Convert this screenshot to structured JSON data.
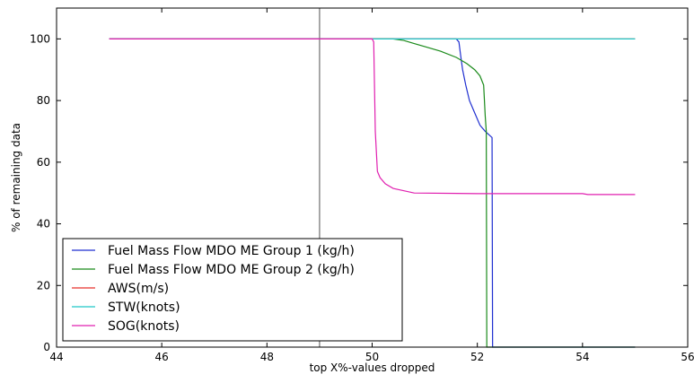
{
  "chart_data": {
    "type": "line",
    "title": "",
    "xlabel": "top X%-values dropped",
    "ylabel": "% of remaining data",
    "xlim": [
      44,
      56
    ],
    "ylim": [
      0,
      110
    ],
    "xticks": [
      44,
      46,
      48,
      50,
      52,
      54,
      56
    ],
    "yticks": [
      0,
      20,
      40,
      60,
      80,
      100
    ],
    "grid": false,
    "legend_position": "lower-left",
    "vertical_reference_line": {
      "x": 49,
      "color": "#8c8c8c"
    },
    "series": [
      {
        "name": "Fuel Mass Flow MDO ME Group 1 (kg/h)",
        "color": "#1f2fd0",
        "points": [
          [
            45,
            100
          ],
          [
            51.6,
            100
          ],
          [
            51.65,
            99
          ],
          [
            51.68,
            95
          ],
          [
            51.72,
            90
          ],
          [
            51.78,
            85
          ],
          [
            51.85,
            80
          ],
          [
            51.95,
            76
          ],
          [
            52.05,
            72
          ],
          [
            52.15,
            70
          ],
          [
            52.28,
            68
          ],
          [
            52.29,
            0
          ],
          [
            55,
            0
          ]
        ]
      },
      {
        "name": "Fuel Mass Flow MDO ME Group 2 (kg/h)",
        "color": "#1a8a1a",
        "points": [
          [
            45,
            100
          ],
          [
            50.4,
            100
          ],
          [
            50.6,
            99.5
          ],
          [
            50.8,
            98.5
          ],
          [
            51,
            97.5
          ],
          [
            51.3,
            96
          ],
          [
            51.6,
            94
          ],
          [
            51.8,
            92
          ],
          [
            51.95,
            90
          ],
          [
            52.05,
            88
          ],
          [
            52.12,
            85
          ],
          [
            52.15,
            75
          ],
          [
            52.17,
            70
          ],
          [
            52.18,
            0
          ],
          [
            55,
            0
          ]
        ]
      },
      {
        "name": "AWS(m/s)",
        "color": "#e8322a",
        "points": [
          [
            45,
            100
          ],
          [
            55,
            100
          ]
        ]
      },
      {
        "name": "STW(knots)",
        "color": "#1fc8c8",
        "points": [
          [
            45,
            100
          ],
          [
            55,
            100
          ]
        ]
      },
      {
        "name": "SOG(knots)",
        "color": "#e020b0",
        "points": [
          [
            45,
            100
          ],
          [
            50,
            100
          ],
          [
            50.03,
            99
          ],
          [
            50.06,
            70
          ],
          [
            50.1,
            57
          ],
          [
            50.15,
            55
          ],
          [
            50.25,
            53
          ],
          [
            50.4,
            51.5
          ],
          [
            50.8,
            50
          ],
          [
            52,
            49.8
          ],
          [
            54,
            49.8
          ],
          [
            54.1,
            49.5
          ],
          [
            55,
            49.5
          ]
        ]
      }
    ]
  }
}
